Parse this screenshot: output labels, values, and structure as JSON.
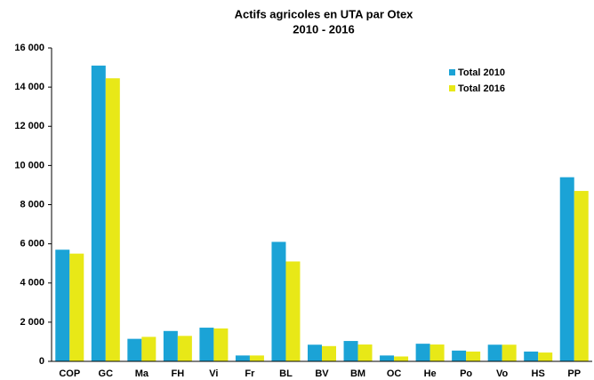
{
  "chart_data": {
    "type": "bar",
    "title": "Actifs agricoles en UTA par Otex",
    "subtitle": "2010 - 2016",
    "categories": [
      "COP",
      "GC",
      "Ma",
      "FH",
      "Vi",
      "Fr",
      "BL",
      "BV",
      "BM",
      "OC",
      "He",
      "Po",
      "Vo",
      "HS",
      "PP"
    ],
    "series": [
      {
        "name": "Total 2010",
        "color": "#1ba3d6",
        "values": [
          5700,
          15100,
          1150,
          1550,
          1720,
          300,
          6100,
          850,
          1040,
          300,
          900,
          550,
          850,
          500,
          9400
        ]
      },
      {
        "name": "Total 2016",
        "color": "#e8e817",
        "values": [
          5500,
          14450,
          1250,
          1300,
          1680,
          300,
          5100,
          780,
          860,
          250,
          860,
          500,
          850,
          450,
          8700
        ]
      }
    ],
    "ylim": [
      0,
      16000
    ],
    "yticks": [
      0,
      {
        "value": 2000,
        "label": "2 000"
      },
      {
        "value": 4000,
        "label": "4 000"
      },
      {
        "value": 6000,
        "label": "6 000"
      },
      {
        "value": 8000,
        "label": "8 000"
      },
      {
        "value": 10000,
        "label": "10 000"
      },
      {
        "value": 12000,
        "label": "12 000"
      },
      {
        "value": 14000,
        "label": "14 000"
      },
      {
        "value": 16000,
        "label": "16 000"
      }
    ],
    "grid": false,
    "legend": "upper right"
  }
}
